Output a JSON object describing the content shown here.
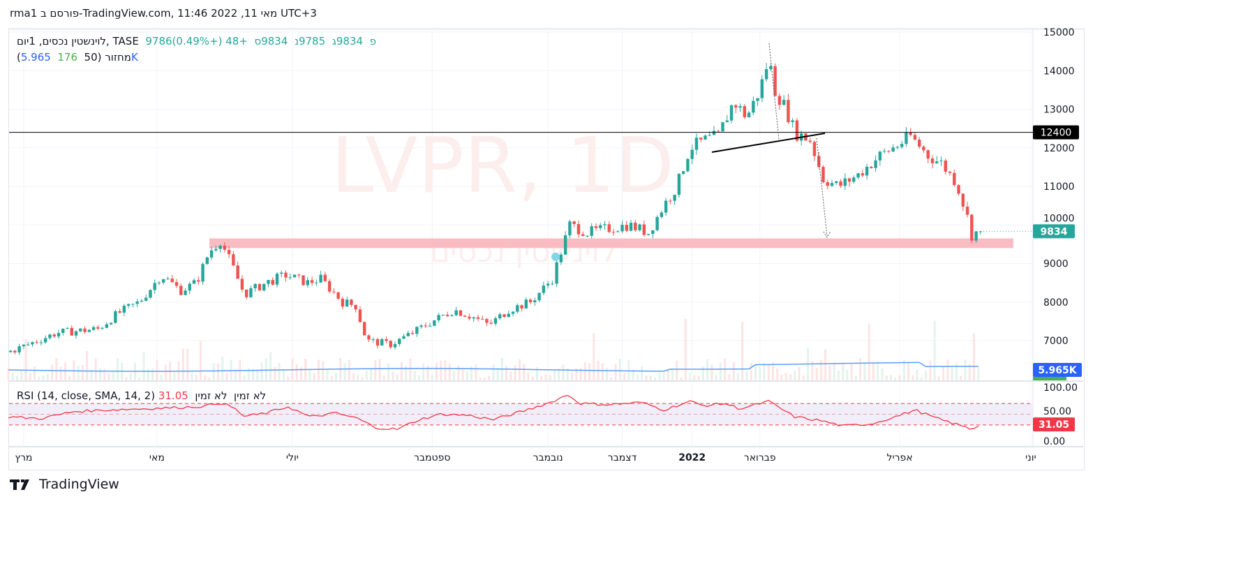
{
  "header": {
    "published": "rma1 פורסם ב-TradingView.com, 11:46 2022 ,11 מאי UTC+3"
  },
  "legend": {
    "symbol": "לוינשטין נכסים, 1יום, TASE",
    "open": "9786פ",
    "high": "9834ג",
    "low": "9785נ",
    "close": "9834ס",
    "change": "+48 (+0.49%)",
    "volume_label": "(מחזור (50",
    "volume": "176",
    "volume_ma": "5.965K"
  },
  "rsi_legend": {
    "label": "RSI (14, close, SMA, 14, 2)",
    "value": "31.05",
    "extra": "לא זמין  לא זמין"
  },
  "watermark": {
    "line1": "LVPR, 1D",
    "line2": "לוינשטין נכסים"
  },
  "footer": {
    "brand": "TradingView"
  },
  "colors": {
    "up": "#26a69a",
    "down": "#ef5350",
    "rsi": "#f23645",
    "ma": "#2962ff",
    "zone": "#f8b5bb"
  },
  "chart_data": {
    "type": "candlestick",
    "title": "LVPR, 1D",
    "ylim": [
      6400,
      15200
    ],
    "y_ticks": [
      15000,
      14000,
      13000,
      12000,
      11000,
      10000,
      9000,
      8000,
      7000
    ],
    "x_tick_labels": [
      {
        "day": 7,
        "label": "מרץ"
      },
      {
        "day": 68,
        "label": "מאי"
      },
      {
        "day": 130,
        "label": "יולי"
      },
      {
        "day": 194,
        "label": "ספטמבר"
      },
      {
        "day": 247,
        "label": "נובמבר"
      },
      {
        "day": 281,
        "label": "דצמבר"
      },
      {
        "day": 313,
        "label": "2022"
      },
      {
        "day": 344,
        "label": "פברואר"
      },
      {
        "day": 408,
        "label": "אפריל"
      },
      {
        "day": 468,
        "label": "יוני"
      }
    ],
    "close_waypoints": [
      [
        0,
        6700
      ],
      [
        9,
        6900
      ],
      [
        22,
        7200
      ],
      [
        41,
        7300
      ],
      [
        50,
        7700
      ],
      [
        60,
        8000
      ],
      [
        70,
        8700
      ],
      [
        79,
        8300
      ],
      [
        86,
        8500
      ],
      [
        92,
        9300
      ],
      [
        97,
        9600
      ],
      [
        102,
        9000
      ],
      [
        108,
        8200
      ],
      [
        118,
        8500
      ],
      [
        127,
        8700
      ],
      [
        137,
        8500
      ],
      [
        143,
        8600
      ],
      [
        153,
        8000
      ],
      [
        159,
        7900
      ],
      [
        164,
        7000
      ],
      [
        175,
        6900
      ],
      [
        185,
        7200
      ],
      [
        194,
        7500
      ],
      [
        204,
        7800
      ],
      [
        213,
        7600
      ],
      [
        220,
        7400
      ],
      [
        229,
        7800
      ],
      [
        239,
        8000
      ],
      [
        249,
        8600
      ],
      [
        253,
        9300
      ],
      [
        257,
        10000
      ],
      [
        265,
        9800
      ],
      [
        274,
        9900
      ],
      [
        284,
        10000
      ],
      [
        293,
        9800
      ],
      [
        300,
        10500
      ],
      [
        306,
        11000
      ],
      [
        312,
        12000
      ],
      [
        319,
        12200
      ],
      [
        325,
        12300
      ],
      [
        332,
        13200
      ],
      [
        338,
        12800
      ],
      [
        344,
        13500
      ],
      [
        348,
        14300
      ],
      [
        351,
        13500
      ],
      [
        356,
        13000
      ],
      [
        360,
        12400
      ],
      [
        367,
        12200
      ],
      [
        373,
        11200
      ],
      [
        380,
        11000
      ],
      [
        389,
        11300
      ],
      [
        399,
        11800
      ],
      [
        408,
        12100
      ],
      [
        413,
        12300
      ],
      [
        421,
        11800
      ],
      [
        427,
        11600
      ],
      [
        434,
        11100
      ],
      [
        439,
        10200
      ],
      [
        442,
        9500
      ],
      [
        445,
        9834
      ]
    ],
    "last_price": "9834",
    "horizontal_level": "12400",
    "volume_ma_label": "5.965K",
    "support_zone": [
      9400,
      9650
    ],
    "rsi": {
      "ylim": [
        0,
        100
      ],
      "y_ticks": [
        "100.00",
        "50.00",
        "0.00"
      ],
      "bands": [
        70,
        50,
        30
      ],
      "last": "31.05",
      "waypoints": [
        [
          0,
          45
        ],
        [
          15,
          42
        ],
        [
          30,
          55
        ],
        [
          45,
          58
        ],
        [
          60,
          60
        ],
        [
          75,
          62
        ],
        [
          90,
          65
        ],
        [
          97,
          72
        ],
        [
          103,
          62
        ],
        [
          108,
          46
        ],
        [
          118,
          52
        ],
        [
          128,
          64
        ],
        [
          138,
          45
        ],
        [
          150,
          52
        ],
        [
          160,
          42
        ],
        [
          168,
          25
        ],
        [
          178,
          22
        ],
        [
          188,
          40
        ],
        [
          198,
          50
        ],
        [
          210,
          48
        ],
        [
          222,
          40
        ],
        [
          235,
          55
        ],
        [
          248,
          72
        ],
        [
          256,
          86
        ],
        [
          262,
          70
        ],
        [
          275,
          68
        ],
        [
          290,
          72
        ],
        [
          300,
          58
        ],
        [
          312,
          74
        ],
        [
          318,
          66
        ],
        [
          328,
          70
        ],
        [
          335,
          60
        ],
        [
          348,
          74
        ],
        [
          360,
          45
        ],
        [
          372,
          38
        ],
        [
          382,
          28
        ],
        [
          395,
          32
        ],
        [
          408,
          48
        ],
        [
          415,
          58
        ],
        [
          425,
          42
        ],
        [
          435,
          30
        ],
        [
          441,
          22
        ],
        [
          445,
          31
        ]
      ]
    }
  }
}
